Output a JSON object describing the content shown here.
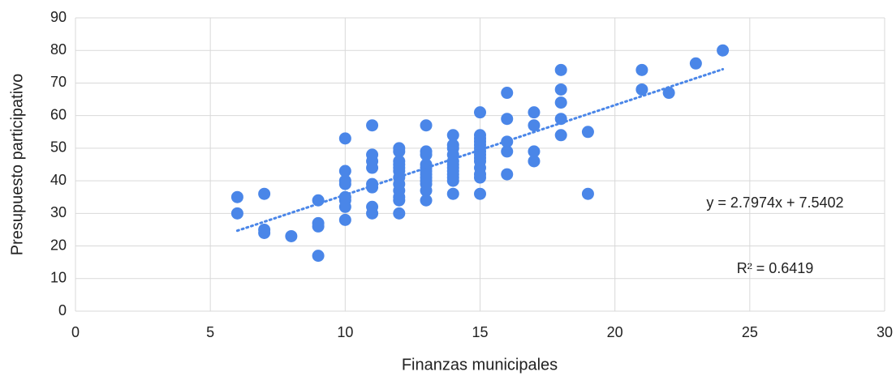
{
  "chart_data": {
    "type": "scatter",
    "x_label": "Finanzas municipales",
    "y_label": "Presupuesto participativo",
    "annotations": [
      "y = 2.7974x + 7.5402",
      "R² = 0.6419"
    ],
    "color": "#4a86e8",
    "x": [
      6,
      6,
      7,
      7,
      7,
      8,
      9,
      9,
      9,
      9,
      10,
      10,
      10,
      10,
      10,
      10,
      10,
      10,
      11,
      11,
      11,
      11,
      11,
      11,
      11,
      11,
      12,
      12,
      12,
      12,
      12,
      12,
      12,
      12,
      12,
      12,
      12,
      12,
      13,
      13,
      13,
      13,
      13,
      13,
      13,
      13,
      13,
      13,
      13,
      13,
      14,
      14,
      14,
      14,
      14,
      14,
      14,
      14,
      14,
      14,
      14,
      14,
      15,
      15,
      15,
      15,
      15,
      15,
      15,
      15,
      15,
      15,
      15,
      15,
      15,
      15,
      16,
      16,
      16,
      16,
      16,
      17,
      17,
      17,
      17,
      18,
      18,
      18,
      18,
      18,
      19,
      19,
      21,
      21,
      22,
      23,
      24
    ],
    "values": [
      35,
      30,
      36,
      25,
      24,
      23,
      34,
      27,
      26,
      17,
      53,
      43,
      40,
      39,
      35,
      34,
      32,
      28,
      57,
      48,
      46,
      44,
      39,
      38,
      32,
      30,
      50,
      49,
      46,
      45,
      44,
      43,
      41,
      39,
      37,
      35,
      34,
      30,
      57,
      49,
      48,
      45,
      44,
      43,
      42,
      41,
      40,
      39,
      37,
      34,
      54,
      51,
      50,
      48,
      46,
      45,
      44,
      43,
      42,
      41,
      40,
      36,
      61,
      54,
      53,
      52,
      51,
      50,
      49,
      48,
      47,
      46,
      44,
      42,
      41,
      36,
      67,
      59,
      52,
      49,
      42,
      61,
      57,
      49,
      46,
      74,
      68,
      64,
      59,
      54,
      55,
      36,
      74,
      68,
      67,
      76,
      80
    ],
    "xlim": [
      0,
      30
    ],
    "xticks": [
      0,
      5,
      10,
      15,
      20,
      25,
      30
    ],
    "ylim": [
      0,
      90
    ],
    "yticks": [
      0,
      10,
      20,
      30,
      40,
      50,
      60,
      70,
      80,
      90
    ],
    "grid": true,
    "trendline": true
  }
}
